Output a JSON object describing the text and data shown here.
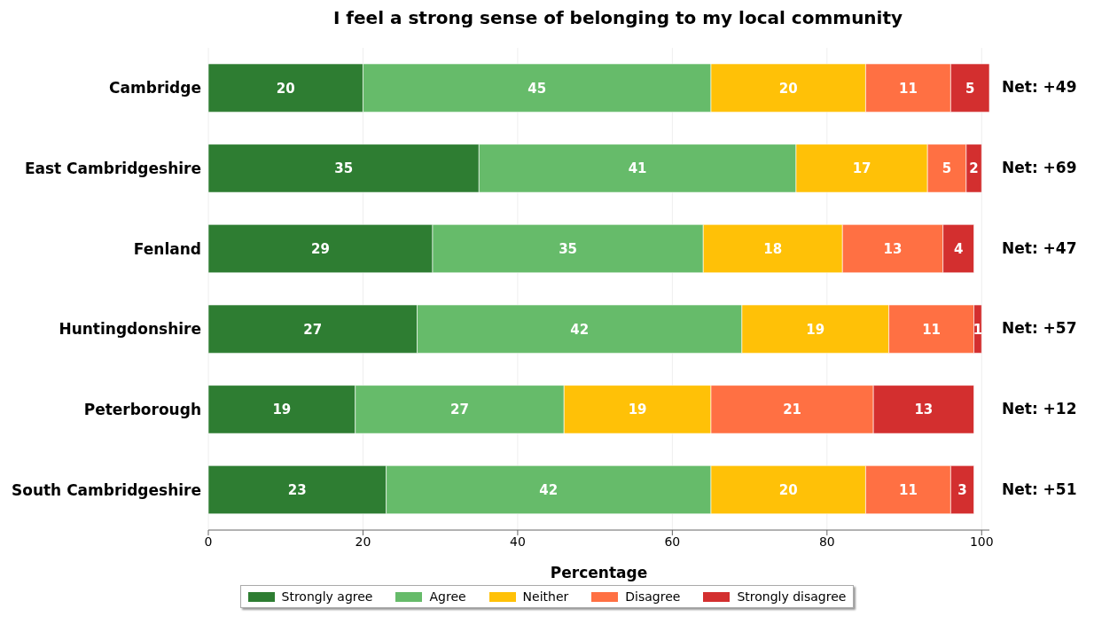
{
  "chart_data": {
    "type": "bar",
    "orientation": "horizontal",
    "stacked": true,
    "title": "I feel a strong sense of belonging to my local community",
    "xlabel": "Percentage",
    "categories": [
      "Cambridge",
      "East Cambridgeshire",
      "Fenland",
      "Huntingdonshire",
      "Peterborough",
      "South Cambridgeshire"
    ],
    "series": [
      {
        "name": "Strongly agree",
        "color": "#2e7d32",
        "values": [
          20,
          35,
          29,
          27,
          19,
          23
        ]
      },
      {
        "name": "Agree",
        "color": "#66bb6a",
        "values": [
          45,
          41,
          35,
          42,
          27,
          42
        ]
      },
      {
        "name": "Neither",
        "color": "#ffc107",
        "values": [
          20,
          17,
          18,
          19,
          19,
          20
        ]
      },
      {
        "name": "Disagree",
        "color": "#ff7043",
        "values": [
          11,
          5,
          13,
          11,
          21,
          11
        ]
      },
      {
        "name": "Strongly disagree",
        "color": "#d32f2f",
        "values": [
          5,
          2,
          4,
          1,
          13,
          3
        ]
      }
    ],
    "xlim": [
      0,
      101
    ],
    "xticks": [
      0,
      20,
      40,
      60,
      80,
      100
    ],
    "grid": "x",
    "legend": "bottom",
    "data_labels": true,
    "annotations": [
      "Net: +49",
      "Net: +69",
      "Net: +47",
      "Net: +57",
      "Net: +12",
      "Net: +51"
    ]
  }
}
